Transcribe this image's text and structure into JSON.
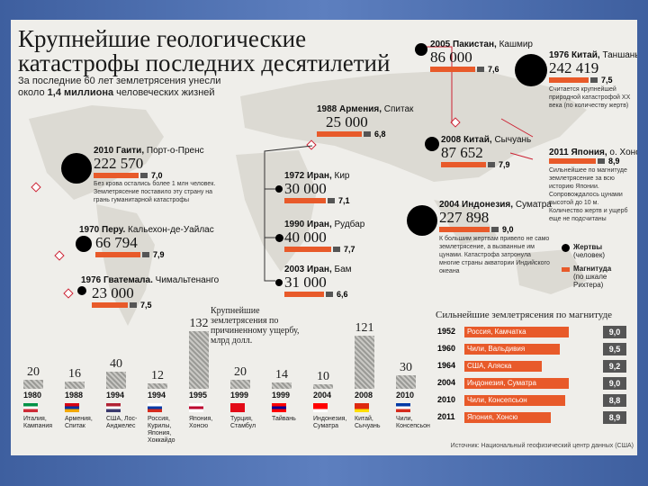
{
  "title": "Крупнейшие геологические катастрофы последних десятилетий",
  "subtitle_pre": "За последние 60 лет землетрясения унесли около ",
  "subtitle_bold": "1,4 миллиона",
  "subtitle_post": " человеческих жизней",
  "events": {
    "haiti": {
      "year": "2010",
      "place": "Гаити",
      "detail": "Порт-о-Пренс",
      "deaths": "222 570",
      "magnitude": "7,0",
      "note": "Без крова остались более 1 млн человек. Землетрясение поставило эту страну на грань гуманитарной катастрофы"
    },
    "peru": {
      "year": "1970",
      "place": "Перу",
      "detail": "Кальехон-де-Уайлас",
      "deaths": "66 794",
      "magnitude": "7,9"
    },
    "guatemala": {
      "year": "1976",
      "place": "Гватемала",
      "detail": "Чимальтенанго",
      "deaths": "23 000",
      "magnitude": "7,5"
    },
    "armenia": {
      "year": "1988",
      "place": "Армения",
      "detail": "Спитак",
      "deaths": "25 000",
      "magnitude": "6,8"
    },
    "iran1972": {
      "year": "1972",
      "place": "Иран",
      "detail": "Кир",
      "deaths": "30 000",
      "magnitude": "7,1"
    },
    "iran1990": {
      "year": "1990",
      "place": "Иран",
      "detail": "Рудбар",
      "deaths": "40 000",
      "magnitude": "7,7"
    },
    "iran2003": {
      "year": "2003",
      "place": "Иран",
      "detail": "Бам",
      "deaths": "31 000",
      "magnitude": "6,6"
    },
    "pakistan": {
      "year": "2005",
      "place": "Пакистан",
      "detail": "Кашмир",
      "deaths": "86 000",
      "magnitude": "7,6"
    },
    "china1976": {
      "year": "1976",
      "place": "Китай",
      "detail": "Таншань",
      "deaths": "242 419",
      "magnitude": "7,5",
      "note": "Считается крупнейшей природной катастрофой XX века (по количеству жертв)"
    },
    "china2008": {
      "year": "2008",
      "place": "Китай",
      "detail": "Сычуань",
      "deaths": "87 652",
      "magnitude": "7,9"
    },
    "indonesia": {
      "year": "2004",
      "place": "Индонезия",
      "detail": "Суматра",
      "deaths": "227 898",
      "magnitude": "9,0",
      "note": "К большим жертвам привело не само землетрясение, а вызванные им цунами. Катастрофа затронула многие страны акватории Индийского океана"
    },
    "japan": {
      "year": "2011",
      "place": "Япония",
      "detail": "о. Хонсю",
      "magnitude": "8,9",
      "note": "Сильнейшее по магнитуде землетрясение за всю историю Японии. Сопровождалось цунами высотой до 10 м. Количество жертв и ущерб еще не подсчитаны"
    }
  },
  "legend": {
    "victims": "Жертвы",
    "victims_sub": "(человек)",
    "magnitude": "Магнитуда",
    "magnitude_sub": "(по шкале Рихтера)"
  },
  "damage_chart_title": "Крупнейшие землетрясения по причиненному ущербу, млрд долл.",
  "chart_data": {
    "type": "bar",
    "title": "Крупнейшие землетрясения по причиненному ущербу, млрд долл.",
    "categories": [
      "1980 Италия, Кампания",
      "1988 Армения, Спитак",
      "1994 США, Лос-Анджелес",
      "1994 Россия, Курилы",
      "1995 Япония, Хонсю",
      "1999 Турция, Стамбул",
      "1999 Тайвань",
      "2004 Индонезия, Суматра",
      "2008 Китай, Сычуань",
      "2010 Чили, Консепсьон"
    ],
    "values": [
      20,
      16,
      40,
      12,
      132,
      20,
      14,
      10,
      121,
      30
    ]
  },
  "damage_items": [
    {
      "year": "1980",
      "country": "Италия,",
      "place": "Кампания",
      "value": "20"
    },
    {
      "year": "1988",
      "country": "Армения,",
      "place": "Спитак",
      "value": "16"
    },
    {
      "year": "1994",
      "country": "США,",
      "place": "Лос-Анджелес",
      "value": "40"
    },
    {
      "year": "1994",
      "country": "Россия,",
      "place": "Курилы, Япония, Хоккайдо",
      "value": "12"
    },
    {
      "year": "1995",
      "country": "Япония,",
      "place": "Хонсю",
      "value": "132"
    },
    {
      "year": "1999",
      "country": "Турция,",
      "place": "Стамбул",
      "value": "20"
    },
    {
      "year": "1999",
      "country": "Тайвань",
      "place": "",
      "value": "14"
    },
    {
      "year": "2004",
      "country": "Индонезия,",
      "place": "Суматра",
      "value": "10"
    },
    {
      "year": "2008",
      "country": "Китай,",
      "place": "Сычуань",
      "value": "121"
    },
    {
      "year": "2010",
      "country": "Чили,",
      "place": "Консепсьон",
      "value": "30"
    }
  ],
  "magnitude_table": {
    "title": "Сильнейшие землетрясения по магнитуде",
    "rows": [
      {
        "year": "1952",
        "place": "Россия, Камчатка",
        "mag": "9,0"
      },
      {
        "year": "1960",
        "place": "Чили, Вальдивия",
        "mag": "9,5"
      },
      {
        "year": "1964",
        "place": "США, Аляска",
        "mag": "9,2"
      },
      {
        "year": "2004",
        "place": "Индонезия, Суматра",
        "mag": "9,0"
      },
      {
        "year": "2010",
        "place": "Чили, Консепсьон",
        "mag": "8,8"
      },
      {
        "year": "2011",
        "place": "Япония, Хонсю",
        "mag": "8,9"
      }
    ]
  },
  "source": "Источник: Национальный геофизический центр данных (США)",
  "colors": {
    "accent": "#e85a2a",
    "bar_dark": "#555555",
    "dot": "#000000",
    "slide_bg": "#4a6cad"
  }
}
